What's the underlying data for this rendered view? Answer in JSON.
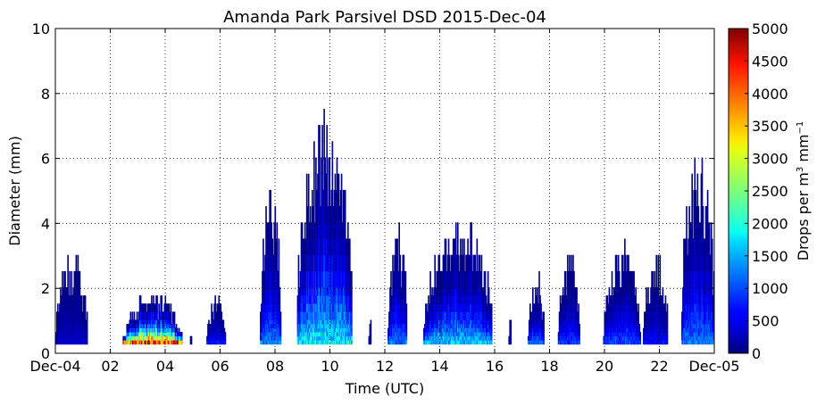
{
  "chart_data": {
    "type": "heatmap",
    "title": "Amanda Park Parsivel DSD 2015-Dec-04",
    "xlabel": "Time (UTC)",
    "ylabel": "Diameter (mm)",
    "xlim": [
      0,
      24
    ],
    "ylim": [
      0,
      10
    ],
    "x_ticks": [
      0,
      2,
      4,
      6,
      8,
      10,
      12,
      14,
      16,
      18,
      20,
      22,
      24
    ],
    "x_tick_labels": [
      "Dec-04",
      "02",
      "04",
      "06",
      "08",
      "10",
      "12",
      "14",
      "16",
      "18",
      "20",
      "22",
      "Dec-05"
    ],
    "y_ticks": [
      0,
      2,
      4,
      6,
      8,
      10
    ],
    "y_tick_labels": [
      "0",
      "2",
      "4",
      "6",
      "8",
      "10"
    ],
    "grid": true,
    "colorbar": {
      "label": "Drops per m³ mm⁻¹",
      "label_main": "Drops per m",
      "label_sup1": "3",
      "label_mid": " mm",
      "label_sup2": "−1",
      "min": 0,
      "max": 5000,
      "ticks": [
        0,
        500,
        1000,
        1500,
        2000,
        2500,
        3000,
        3500,
        4000,
        4500,
        5000
      ],
      "tick_labels": [
        "0",
        "500",
        "1000",
        "1500",
        "2000",
        "2500",
        "3000",
        "3500",
        "4000",
        "4500",
        "5000"
      ],
      "colormap": "jet"
    },
    "rain_events": [
      {
        "start": 0.0,
        "end": 1.15,
        "max_diameter": 3.0,
        "intensity": 400
      },
      {
        "start": 2.45,
        "end": 4.6,
        "max_diameter": 1.8,
        "intensity": 5000
      },
      {
        "start": 4.9,
        "end": 4.95,
        "max_diameter": 0.5,
        "intensity": 100
      },
      {
        "start": 5.5,
        "end": 6.2,
        "max_diameter": 1.8,
        "intensity": 800
      },
      {
        "start": 7.45,
        "end": 8.2,
        "max_diameter": 5.1,
        "intensity": 1500
      },
      {
        "start": 8.8,
        "end": 10.8,
        "max_diameter": 7.2,
        "intensity": 2300
      },
      {
        "start": 11.4,
        "end": 11.5,
        "max_diameter": 1.0,
        "intensity": 200
      },
      {
        "start": 12.1,
        "end": 12.8,
        "max_diameter": 3.6,
        "intensity": 1500
      },
      {
        "start": 13.4,
        "end": 15.9,
        "max_diameter": 4.1,
        "intensity": 2000
      },
      {
        "start": 16.5,
        "end": 16.6,
        "max_diameter": 1.0,
        "intensity": 300
      },
      {
        "start": 17.2,
        "end": 17.8,
        "max_diameter": 2.3,
        "intensity": 1400
      },
      {
        "start": 18.3,
        "end": 19.1,
        "max_diameter": 3.1,
        "intensity": 1100
      },
      {
        "start": 19.95,
        "end": 21.3,
        "max_diameter": 3.1,
        "intensity": 1200
      },
      {
        "start": 21.4,
        "end": 22.3,
        "max_diameter": 3.0,
        "intensity": 800
      },
      {
        "start": 22.8,
        "end": 24.0,
        "max_diameter": 6.2,
        "intensity": 1500
      }
    ]
  }
}
